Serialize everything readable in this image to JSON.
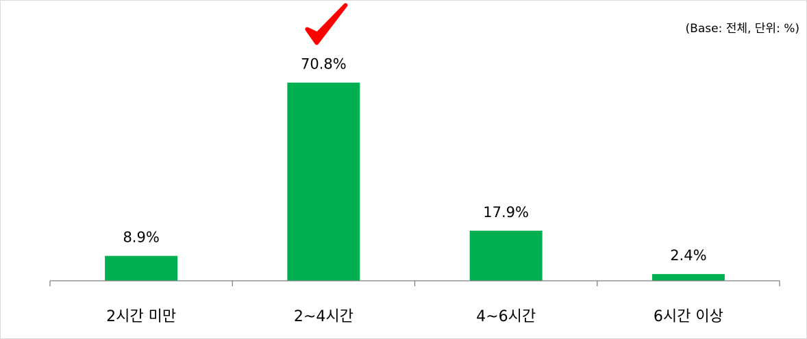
{
  "note": "(Base: 전체, 단위: %)",
  "chart_data": {
    "type": "bar",
    "categories": [
      "2시간 미만",
      "2~4시간",
      "4~6시간",
      "6시간 이상"
    ],
    "values": [
      8.9,
      70.8,
      17.9,
      2.4
    ],
    "data_labels": [
      "8.9%",
      "70.8%",
      "17.9%",
      "2.4%"
    ],
    "title": "",
    "xlabel": "",
    "ylabel": "",
    "ylim": [
      0,
      80
    ],
    "grid": false,
    "highlight": {
      "category": "2~4시간",
      "marker": "checkmark-icon",
      "color": "#ff0000"
    },
    "colors": {
      "bar": "#00b050",
      "axis": "#808080"
    }
  }
}
